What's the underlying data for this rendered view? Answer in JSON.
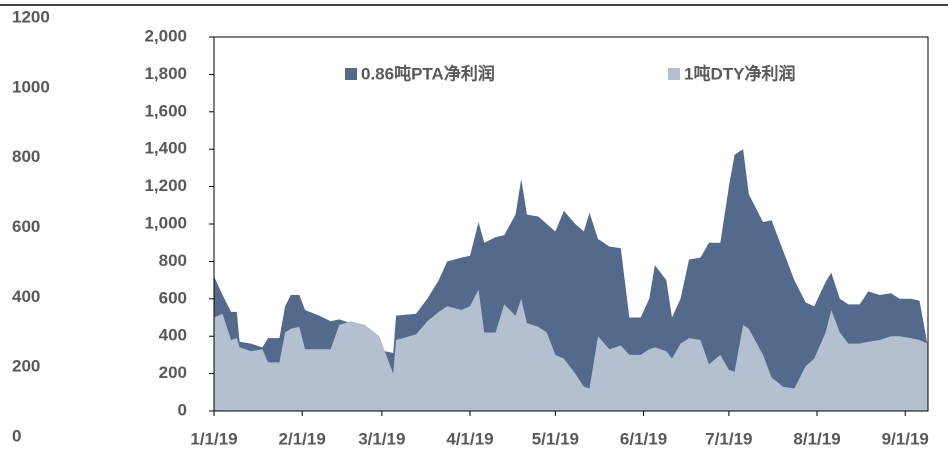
{
  "chart_data": {
    "type": "area",
    "x": [
      "2019-01-01",
      "2019-01-04",
      "2019-01-07",
      "2019-01-09",
      "2019-01-10",
      "2019-01-14",
      "2019-01-18",
      "2019-01-20",
      "2019-01-24",
      "2019-01-26",
      "2019-01-28",
      "2019-01-31",
      "2019-02-02",
      "2019-02-07",
      "2019-02-11",
      "2019-02-14",
      "2019-02-18",
      "2019-02-23",
      "2019-02-28",
      "2019-03-02",
      "2019-03-05",
      "2019-03-06",
      "2019-03-13",
      "2019-03-17",
      "2019-03-21",
      "2019-03-24",
      "2019-03-29",
      "2019-04-01",
      "2019-04-04",
      "2019-04-06",
      "2019-04-10",
      "2019-04-13",
      "2019-04-17",
      "2019-04-19",
      "2019-04-21",
      "2019-04-25",
      "2019-04-28",
      "2019-05-01",
      "2019-05-04",
      "2019-05-08",
      "2019-05-11",
      "2019-05-13",
      "2019-05-16",
      "2019-05-20",
      "2019-05-24",
      "2019-05-27",
      "2019-05-31",
      "2019-06-03",
      "2019-06-05",
      "2019-06-09",
      "2019-06-11",
      "2019-06-14",
      "2019-06-17",
      "2019-06-21",
      "2019-06-24",
      "2019-06-28",
      "2019-07-01",
      "2019-07-03",
      "2019-07-06",
      "2019-07-08",
      "2019-07-13",
      "2019-07-16",
      "2019-07-20",
      "2019-07-24",
      "2019-07-28",
      "2019-07-31",
      "2019-08-04",
      "2019-08-06",
      "2019-08-09",
      "2019-08-12",
      "2019-08-16",
      "2019-08-19",
      "2019-08-23",
      "2019-08-27",
      "2019-08-30",
      "2019-09-03",
      "2019-09-06",
      "2019-09-09"
    ],
    "series": [
      {
        "name": "0.86吨PTA净利润",
        "color": "#536a8c",
        "values": [
          720,
          620,
          530,
          530,
          370,
          360,
          340,
          390,
          390,
          560,
          620,
          620,
          540,
          510,
          480,
          490,
          470,
          460,
          400,
          320,
          310,
          510,
          520,
          600,
          700,
          800,
          820,
          830,
          1010,
          900,
          930,
          940,
          1050,
          1240,
          1050,
          1040,
          1000,
          960,
          1070,
          1000,
          960,
          1060,
          920,
          880,
          870,
          500,
          500,
          600,
          780,
          700,
          500,
          600,
          810,
          820,
          900,
          900,
          1200,
          1370,
          1400,
          1160,
          1010,
          1020,
          860,
          700,
          580,
          560,
          690,
          740,
          600,
          570,
          570,
          640,
          620,
          630,
          600,
          600,
          590,
          340
        ]
      },
      {
        "name": "1吨DTY净利润",
        "color": "#b4bfd0",
        "values": [
          500,
          520,
          380,
          390,
          340,
          320,
          330,
          260,
          260,
          420,
          440,
          450,
          330,
          330,
          330,
          460,
          480,
          460,
          400,
          320,
          200,
          380,
          410,
          480,
          530,
          560,
          540,
          560,
          650,
          420,
          420,
          570,
          510,
          600,
          470,
          450,
          420,
          300,
          280,
          200,
          130,
          120,
          400,
          330,
          350,
          300,
          300,
          330,
          340,
          320,
          280,
          360,
          390,
          380,
          250,
          300,
          220,
          210,
          460,
          440,
          300,
          180,
          130,
          120,
          240,
          280,
          420,
          540,
          420,
          360,
          360,
          370,
          380,
          400,
          400,
          390,
          380,
          360
        ]
      }
    ],
    "xlim": [
      "2019-01-01",
      "2019-09-09"
    ],
    "xticks": [
      {
        "value": "2019-01-01",
        "label": "1/1/19"
      },
      {
        "value": "2019-02-01",
        "label": "2/1/19"
      },
      {
        "value": "2019-03-01",
        "label": "3/1/19"
      },
      {
        "value": "2019-04-01",
        "label": "4/1/19"
      },
      {
        "value": "2019-05-01",
        "label": "5/1/19"
      },
      {
        "value": "2019-06-01",
        "label": "6/1/19"
      },
      {
        "value": "2019-07-01",
        "label": "7/1/19"
      },
      {
        "value": "2019-08-01",
        "label": "8/1/19"
      },
      {
        "value": "2019-09-01",
        "label": "9/1/19"
      }
    ],
    "ylim": [
      0,
      2000
    ],
    "yticks": [
      0,
      200,
      400,
      600,
      800,
      {
        "value": 1000,
        "label": "1,000"
      },
      {
        "value": 1200,
        "label": "1,200"
      },
      {
        "value": 1400,
        "label": "1,400"
      },
      {
        "value": 1600,
        "label": "1,600"
      },
      {
        "value": 1800,
        "label": "1,800"
      },
      {
        "value": 2000,
        "label": "2,000"
      }
    ],
    "y2lim": [
      0,
      1200
    ],
    "y2ticks": [
      0,
      200,
      400,
      600,
      800,
      1000,
      1200
    ],
    "legend": "top"
  }
}
